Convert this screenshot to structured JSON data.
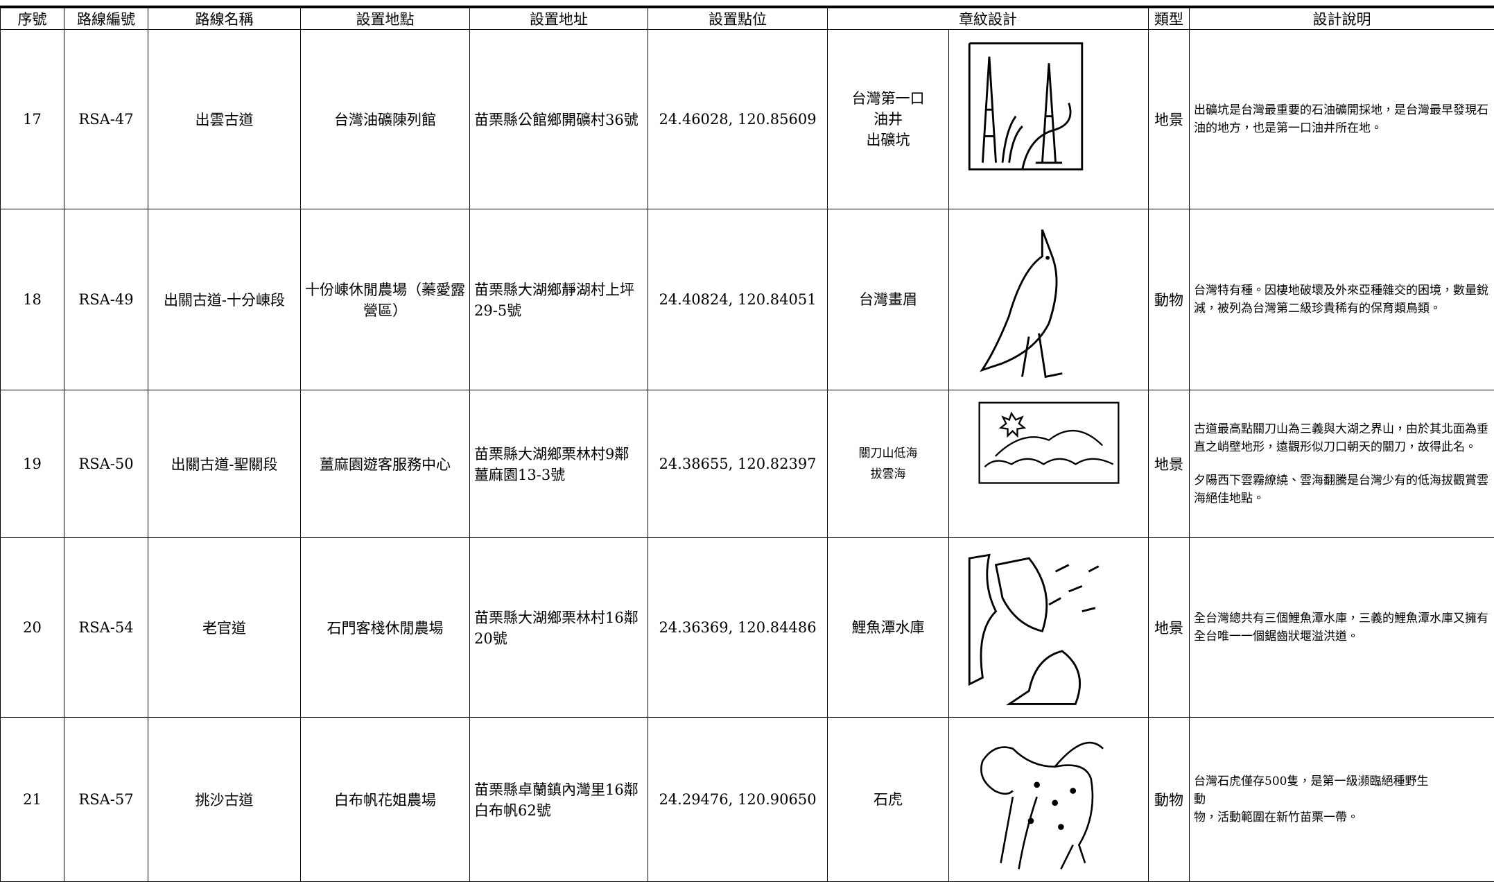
{
  "table": {
    "headers": [
      "序號",
      "路線編號",
      "路線名稱",
      "設置地點",
      "設置地址",
      "設置點位",
      "章紋設計",
      "類型",
      "設計說明"
    ],
    "rows": [
      {
        "no": "17",
        "code": "RSA-47",
        "route": "出雲古道",
        "place": "台灣油礦陳列館",
        "address": "苗栗縣公館鄉開礦村36號",
        "coords": "24.46028, 120.85609",
        "emblem": [
          "台灣第一口",
          "油井",
          "出礦坑"
        ],
        "type": "地景",
        "desc": [
          "出礦坑是台灣最重要的石油礦開採地，是台灣最早發現石油的地方，也是第一口油井所在地。"
        ]
      },
      {
        "no": "18",
        "code": "RSA-49",
        "route": "出關古道-十分崠段",
        "place": "十份崠休閒農場（蓁愛露營區）",
        "address": "苗栗縣大湖鄉靜湖村上坪29-5號",
        "coords": "24.40824, 120.84051",
        "emblem": [
          "台灣畫眉"
        ],
        "type": "動物",
        "desc": [
          "台灣特有種。因棲地破壞及外來亞種雜交的困境，數量銳減，被列為台灣第二級珍貴稀有的保育類鳥類。"
        ]
      },
      {
        "no": "19",
        "code": "RSA-50",
        "route": "出關古道-聖關段",
        "place": "薑麻園遊客服務中心",
        "address": "苗栗縣大湖鄉栗林村9鄰薑麻園13-3號",
        "coords": "24.38655, 120.82397",
        "emblem": [
          "關刀山低海",
          "拔雲海"
        ],
        "type": "地景",
        "desc": [
          "古道最高點關刀山為三義與大湖之界山，由於其北面為垂直之峭壁地形，遠觀形似刀口朝天的關刀，故得此名。",
          "夕陽西下雲霧繚繞、雲海翻騰是台灣少有的低海拔觀賞雲海絕佳地點。"
        ]
      },
      {
        "no": "20",
        "code": "RSA-54",
        "route": "老官道",
        "place": "石門客棧休閒農場",
        "address": "苗栗縣大湖鄉栗林村16鄰20號",
        "coords": "24.36369, 120.84486",
        "emblem": [
          "鯉魚潭水庫"
        ],
        "type": "地景",
        "desc": [
          "全台灣總共有三個鯉魚潭水庫，三義的鯉魚潭水庫又擁有全台唯一一個鋸齒狀堰溢洪道。"
        ]
      },
      {
        "no": "21",
        "code": "RSA-57",
        "route": "挑沙古道",
        "place": "白布帆花姐農場",
        "address": "苗栗縣卓蘭鎮內灣里16鄰白布帆62號",
        "coords": "24.29476, 120.90650",
        "emblem": [
          "石虎"
        ],
        "type": "動物",
        "desc": [
          "台灣石虎僅存500隻，是第一級瀕臨絕種野生",
          "動",
          "物，活動範圍在新竹苗栗一帶。"
        ]
      }
    ]
  }
}
